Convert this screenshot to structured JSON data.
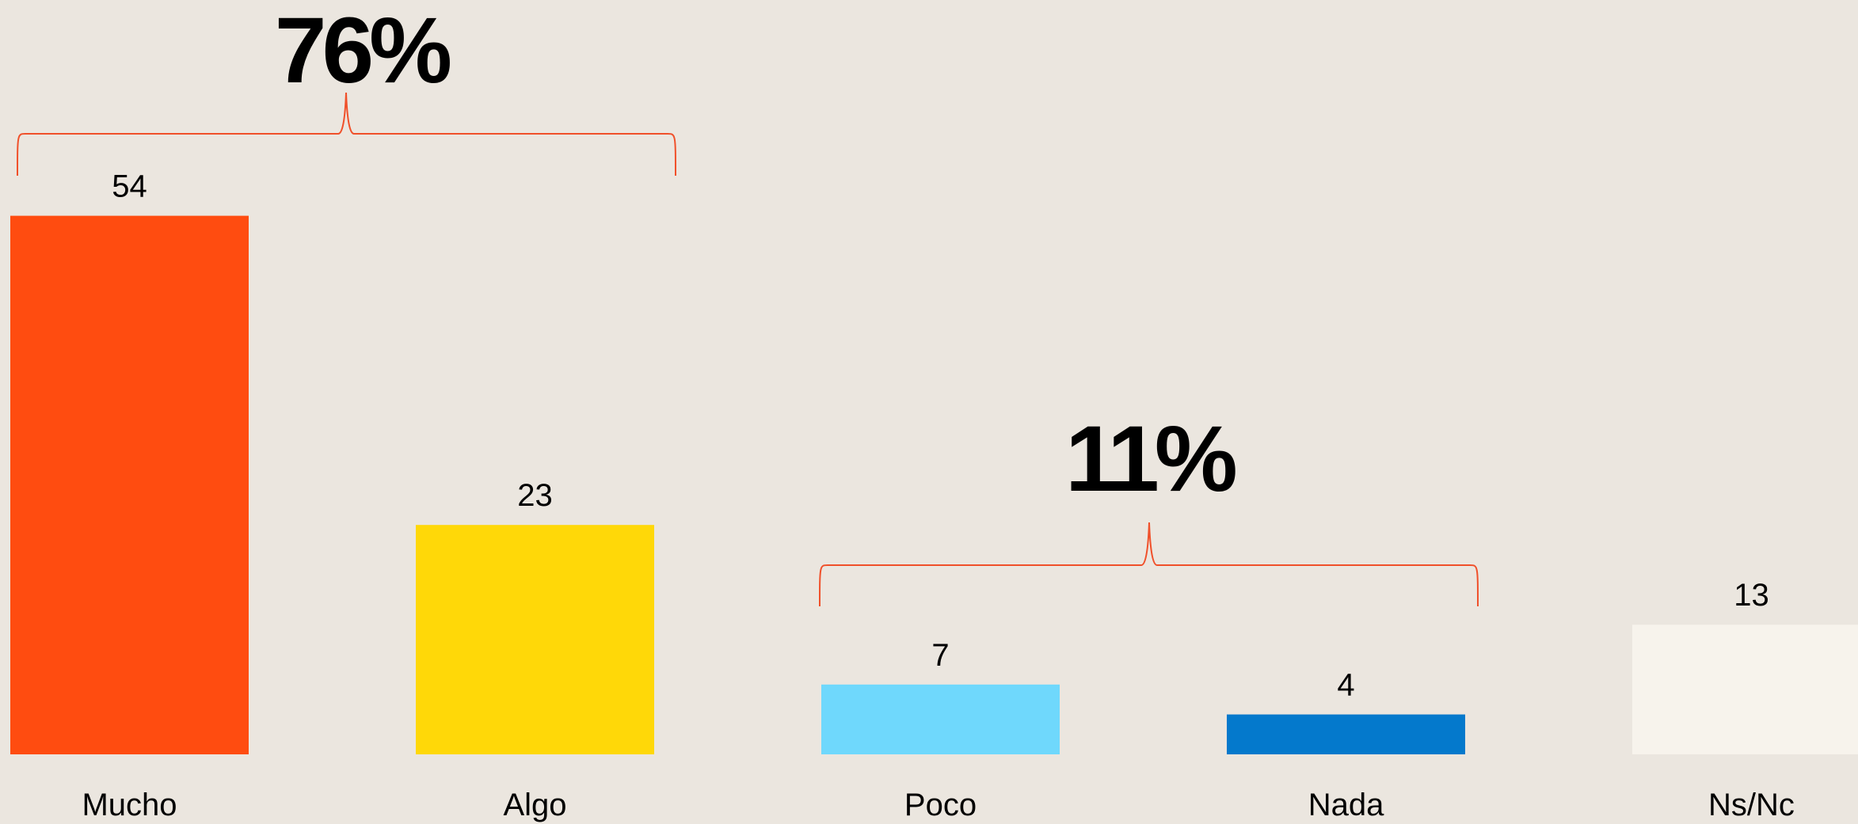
{
  "chart_data": {
    "type": "bar",
    "categories": [
      "Mucho",
      "Algo",
      "Poco",
      "Nada",
      "Ns/Nc"
    ],
    "values": [
      54,
      23,
      7,
      4,
      13
    ],
    "colors": [
      "#ff4c10",
      "#ffd808",
      "#6fd8fc",
      "#0479cc",
      "#f7f3ec"
    ],
    "annotations": [
      {
        "text": "76%"
      },
      {
        "text": "11%"
      }
    ]
  }
}
